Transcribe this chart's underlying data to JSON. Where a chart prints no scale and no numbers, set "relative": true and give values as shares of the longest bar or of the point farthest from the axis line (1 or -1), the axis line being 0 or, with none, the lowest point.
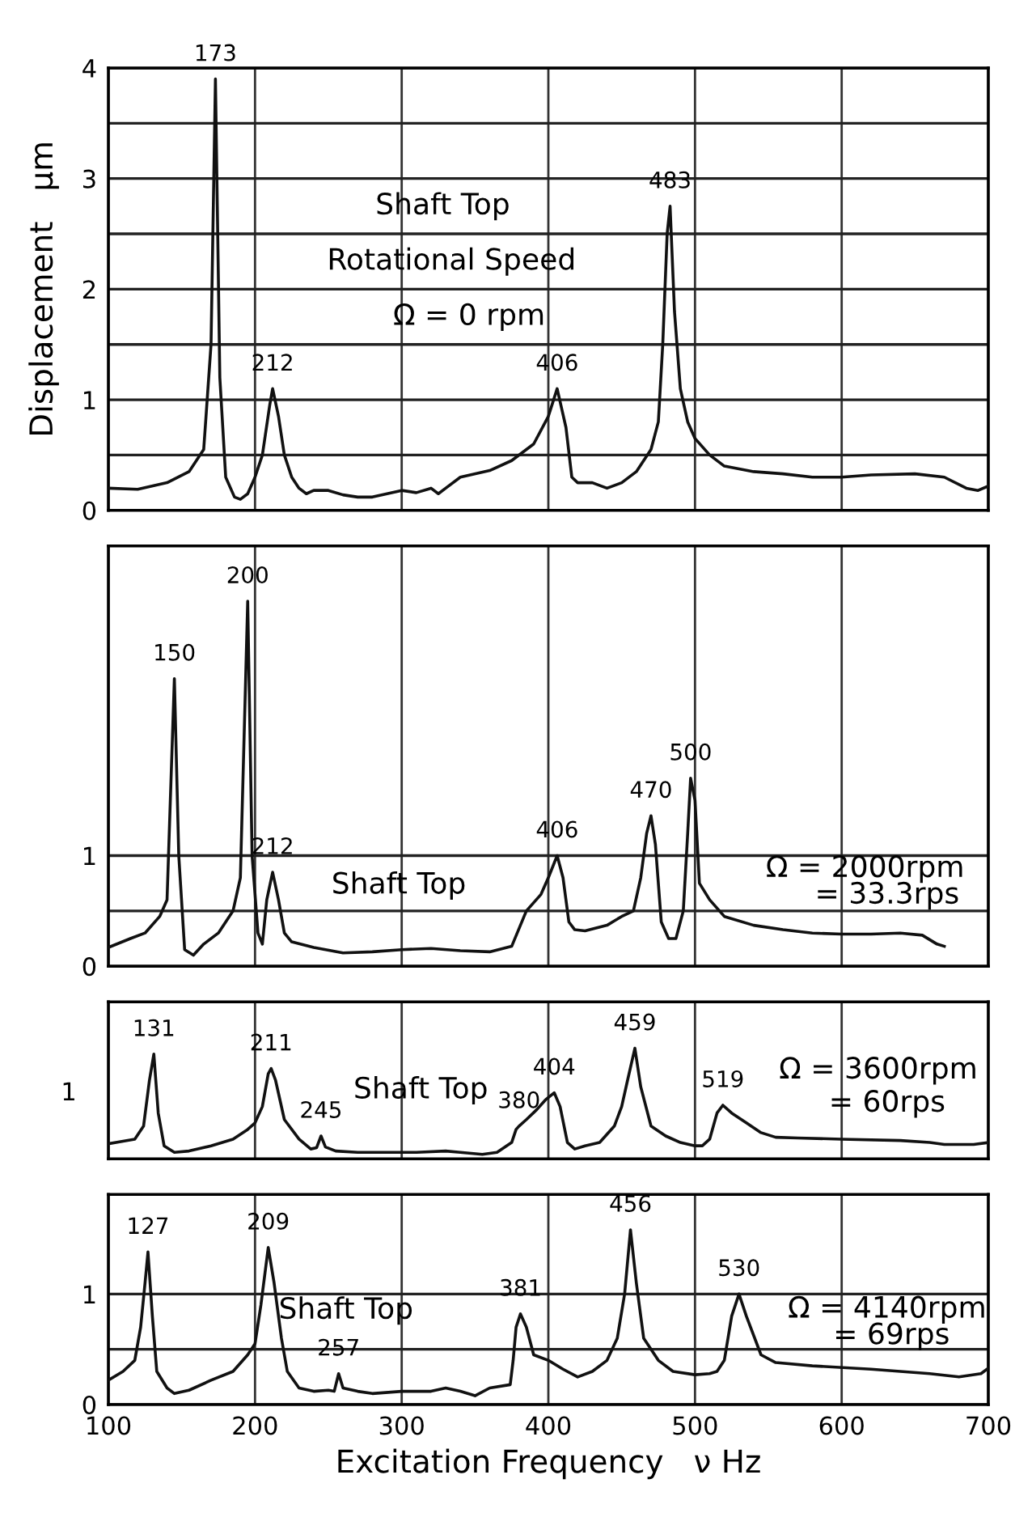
{
  "chart_data": [
    {
      "type": "line",
      "ylabel": "Displacement   μm",
      "xlim": [
        100,
        700
      ],
      "xticks": [
        100,
        200,
        300,
        400,
        500,
        600,
        700
      ],
      "ylim": [
        0,
        4
      ],
      "yticks": [
        0,
        {
          "value": 0.5,
          "label": null
        },
        1,
        {
          "value": 1.5,
          "label": null
        },
        2,
        {
          "value": 2.5,
          "label": null
        },
        3,
        {
          "value": 3.5,
          "label": null
        },
        4
      ],
      "grid": true,
      "tick_labels": "y",
      "series": [
        {
          "color": "#111111",
          "x": [
            100,
            120,
            140,
            155,
            165,
            170,
            173,
            176,
            180,
            186,
            190,
            195,
            200,
            205,
            210,
            212,
            216,
            220,
            225,
            230,
            235,
            240,
            250,
            260,
            270,
            280,
            290,
            300,
            310,
            320,
            325,
            330,
            340,
            360,
            375,
            390,
            400,
            406,
            412,
            416,
            420,
            430,
            440,
            450,
            460,
            470,
            475,
            478,
            481,
            483,
            486,
            490,
            495,
            500,
            510,
            520,
            540,
            560,
            580,
            600,
            620,
            650,
            670,
            685,
            693,
            700
          ],
          "values": [
            0.2,
            0.19,
            0.25,
            0.35,
            0.55,
            1.5,
            3.9,
            1.2,
            0.3,
            0.12,
            0.1,
            0.15,
            0.3,
            0.5,
            0.95,
            1.1,
            0.85,
            0.5,
            0.3,
            0.2,
            0.15,
            0.18,
            0.18,
            0.14,
            0.12,
            0.12,
            0.15,
            0.18,
            0.16,
            0.2,
            0.15,
            0.2,
            0.3,
            0.36,
            0.45,
            0.6,
            0.85,
            1.1,
            0.75,
            0.3,
            0.25,
            0.25,
            0.2,
            0.25,
            0.35,
            0.55,
            0.8,
            1.5,
            2.5,
            2.75,
            1.8,
            1.1,
            0.8,
            0.65,
            0.5,
            0.4,
            0.35,
            0.33,
            0.3,
            0.3,
            0.32,
            0.33,
            0.3,
            0.2,
            0.18,
            0.22
          ]
        }
      ],
      "annotations": [
        "Shaft Top",
        "Rotational Speed",
        "Ω = 0 rpm",
        {
          "text": "173",
          "x": 173,
          "y": 3.9
        },
        {
          "text": "212",
          "x": 212,
          "y": 1.1
        },
        {
          "text": "406",
          "x": 406,
          "y": 1.1
        },
        {
          "text": "483",
          "x": 483,
          "y": 2.75
        }
      ]
    },
    {
      "type": "line",
      "xlim": [
        100,
        700
      ],
      "xticks": [
        100,
        200,
        300,
        400,
        500,
        600,
        700
      ],
      "ylim": [
        0,
        3.8
      ],
      "yticks": [
        0,
        {
          "value": 0.5,
          "label": null
        },
        1
      ],
      "grid": true,
      "tick_labels": "y",
      "series": [
        {
          "color": "#111111",
          "x": [
            100,
            115,
            125,
            135,
            140,
            145,
            148,
            152,
            158,
            165,
            175,
            185,
            190,
            195,
            198,
            202,
            205,
            208,
            212,
            216,
            220,
            225,
            240,
            260,
            280,
            300,
            320,
            340,
            360,
            375,
            385,
            395,
            400,
            406,
            410,
            414,
            418,
            425,
            440,
            450,
            458,
            463,
            467,
            470,
            473,
            477,
            482,
            487,
            492,
            495,
            497,
            500,
            503,
            510,
            520,
            540,
            560,
            580,
            600,
            620,
            640,
            655,
            665,
            670
          ],
          "values": [
            0.17,
            0.25,
            0.3,
            0.45,
            0.6,
            2.6,
            1.0,
            0.15,
            0.1,
            0.2,
            0.3,
            0.5,
            0.8,
            3.3,
            1.0,
            0.3,
            0.2,
            0.6,
            0.85,
            0.6,
            0.3,
            0.22,
            0.17,
            0.12,
            0.13,
            0.15,
            0.16,
            0.14,
            0.13,
            0.18,
            0.5,
            0.65,
            0.8,
            1.0,
            0.8,
            0.4,
            0.33,
            0.32,
            0.37,
            0.45,
            0.5,
            0.8,
            1.2,
            1.36,
            1.1,
            0.4,
            0.25,
            0.25,
            0.5,
            1.2,
            1.7,
            1.5,
            0.75,
            0.6,
            0.45,
            0.37,
            0.33,
            0.3,
            0.29,
            0.29,
            0.3,
            0.28,
            0.2,
            0.18
          ]
        }
      ],
      "annotations": [
        "Shaft Top",
        "Ω = 2000rpm",
        "= 33.3rps",
        {
          "text": "150",
          "x": 145,
          "y": 2.6
        },
        {
          "text": "200",
          "x": 195,
          "y": 3.3
        },
        {
          "text": "212",
          "x": 212,
          "y": 0.85
        },
        {
          "text": "406",
          "x": 406,
          "y": 1.0
        },
        {
          "text": "470",
          "x": 470,
          "y": 1.36
        },
        {
          "text": "500",
          "x": 497,
          "y": 1.7
        }
      ]
    },
    {
      "type": "line",
      "xlim": [
        100,
        700
      ],
      "xticks": [
        100,
        200,
        300,
        400,
        500,
        600,
        700
      ],
      "relative": true,
      "grid": "x",
      "tick_labels": false,
      "series": [
        {
          "color": "#111111",
          "x": [
            100,
            110,
            118,
            124,
            128,
            131,
            134,
            138,
            145,
            155,
            170,
            185,
            195,
            200,
            205,
            209,
            211,
            214,
            220,
            230,
            238,
            242,
            245,
            248,
            255,
            270,
            290,
            310,
            330,
            340,
            355,
            365,
            375,
            378,
            380,
            385,
            392,
            398,
            404,
            408,
            413,
            418,
            425,
            435,
            445,
            450,
            454,
            459,
            463,
            470,
            480,
            490,
            500,
            505,
            510,
            515,
            519,
            525,
            535,
            545,
            555,
            570,
            600,
            640,
            660,
            670,
            690,
            700
          ],
          "values": [
            0.136,
            0.16,
            0.178,
            0.296,
            0.71,
            0.947,
            0.414,
            0.118,
            0.059,
            0.071,
            0.118,
            0.178,
            0.266,
            0.325,
            0.473,
            0.769,
            0.817,
            0.71,
            0.355,
            0.178,
            0.089,
            0.101,
            0.207,
            0.107,
            0.071,
            0.059,
            0.059,
            0.059,
            0.071,
            0.059,
            0.041,
            0.059,
            0.148,
            0.266,
            0.296,
            0.355,
            0.444,
            0.533,
            0.598,
            0.473,
            0.148,
            0.089,
            0.118,
            0.148,
            0.296,
            0.473,
            0.71,
            1,
            0.651,
            0.296,
            0.207,
            0.148,
            0.118,
            0.118,
            0.178,
            0.414,
            0.485,
            0.414,
            0.325,
            0.237,
            0.195,
            0.189,
            0.178,
            0.166,
            0.148,
            0.13,
            0.13,
            0.148
          ]
        }
      ],
      "annotations": [
        "Shaft Top",
        "Ω = 3600rpm",
        "= 60rps",
        "1",
        {
          "text": "131",
          "x": 131,
          "y": 0.947
        },
        {
          "text": "211",
          "x": 211,
          "y": 0.817
        },
        {
          "text": "245",
          "x": 245,
          "y": 0.207
        },
        {
          "text": "380",
          "x": 380,
          "y": 0.296
        },
        {
          "text": "404",
          "x": 404,
          "y": 0.598
        },
        {
          "text": "459",
          "x": 459,
          "y": 1
        },
        {
          "text": "519",
          "x": 519,
          "y": 0.485
        }
      ]
    },
    {
      "type": "line",
      "xlabel": "Excitation Frequency   ν Hz",
      "xlim": [
        100,
        700
      ],
      "xticks": [
        100,
        200,
        300,
        400,
        500,
        600,
        700
      ],
      "ylim": [
        0,
        1.9
      ],
      "yticks": [
        0,
        {
          "value": 0.5,
          "label": null
        },
        1
      ],
      "grid": true,
      "series": [
        {
          "color": "#111111",
          "x": [
            100,
            110,
            118,
            122,
            125,
            127,
            130,
            133,
            140,
            145,
            155,
            170,
            185,
            195,
            200,
            204,
            209,
            213,
            218,
            222,
            230,
            240,
            250,
            254,
            257,
            260,
            270,
            280,
            300,
            320,
            330,
            340,
            350,
            360,
            374,
            376,
            378,
            381,
            385,
            390,
            400,
            410,
            420,
            430,
            440,
            447,
            452,
            456,
            460,
            465,
            475,
            485,
            500,
            510,
            515,
            520,
            525,
            530,
            535,
            545,
            555,
            580,
            620,
            660,
            680,
            695,
            700
          ],
          "values": [
            0.22,
            0.3,
            0.4,
            0.7,
            1.1,
            1.38,
            0.8,
            0.3,
            0.15,
            0.1,
            0.13,
            0.22,
            0.3,
            0.45,
            0.55,
            0.9,
            1.42,
            1.1,
            0.6,
            0.3,
            0.15,
            0.12,
            0.13,
            0.12,
            0.28,
            0.15,
            0.12,
            0.1,
            0.12,
            0.12,
            0.15,
            0.12,
            0.08,
            0.15,
            0.18,
            0.4,
            0.7,
            0.82,
            0.7,
            0.45,
            0.4,
            0.32,
            0.25,
            0.3,
            0.4,
            0.6,
            1.0,
            1.58,
            1.1,
            0.6,
            0.4,
            0.3,
            0.27,
            0.28,
            0.3,
            0.4,
            0.8,
            1.0,
            0.8,
            0.45,
            0.38,
            0.35,
            0.32,
            0.28,
            0.25,
            0.28,
            0.33
          ]
        }
      ],
      "annotations": [
        "Shaft Top",
        "Ω = 4140rpm",
        "= 69rps",
        {
          "text": "127",
          "x": 127,
          "y": 1.38
        },
        {
          "text": "209",
          "x": 209,
          "y": 1.42
        },
        {
          "text": "257",
          "x": 257,
          "y": 0.28
        },
        {
          "text": "381",
          "x": 381,
          "y": 0.82
        },
        {
          "text": "456",
          "x": 456,
          "y": 1.58
        },
        {
          "text": "530",
          "x": 530,
          "y": 1.0
        }
      ]
    }
  ]
}
